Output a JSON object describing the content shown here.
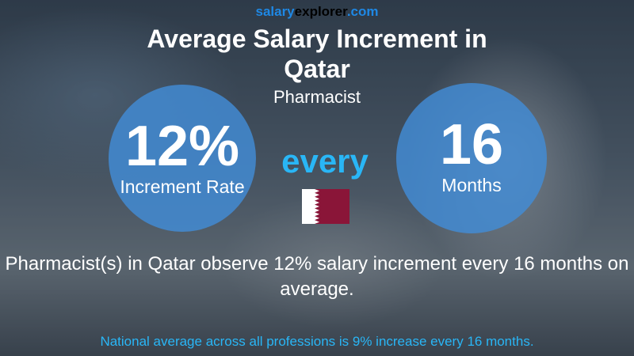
{
  "brand": {
    "parts": [
      "salary",
      "explorer",
      ".com"
    ]
  },
  "header": {
    "title": "Average Salary Increment in Qatar",
    "subtitle": "Pharmacist"
  },
  "left_circle": {
    "value": "12%",
    "label": "Increment Rate"
  },
  "connector": "every",
  "right_circle": {
    "value": "16",
    "label": "Months"
  },
  "description": "Pharmacist(s) in Qatar observe 12% salary increment every 16 months on average.",
  "footer": "National average across all professions is 9% increase every 16 months."
}
